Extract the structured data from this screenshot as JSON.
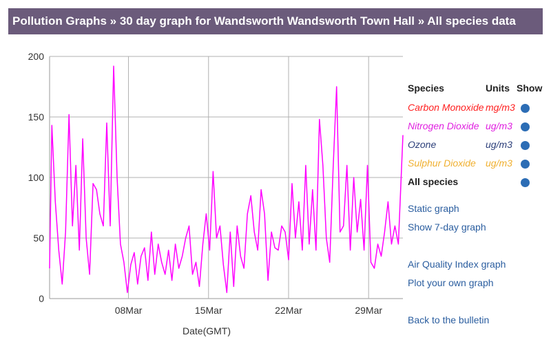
{
  "breadcrumb": "Pollution Graphs » 30 day graph for Wandsworth Wandsworth Town Hall » All species data",
  "species_table": {
    "header_species": "Species",
    "header_units": "Units",
    "header_show": "Show",
    "rows": [
      {
        "name": "Carbon Monoxide",
        "unit": "mg/m3",
        "color": "#ff2020"
      },
      {
        "name": "Nitrogen Dioxide",
        "unit": "ug/m3",
        "color": "#e020e0"
      },
      {
        "name": "Ozone",
        "unit": "ug/m3",
        "color": "#2c3f7a"
      },
      {
        "name": "Sulphur Dioxide",
        "unit": "ug/m3",
        "color": "#f0b030"
      }
    ],
    "all_label": "All species"
  },
  "links": {
    "static_graph": "Static graph",
    "seven_day": "Show 7-day graph",
    "aqi_graph": "Air Quality Index graph",
    "plot_own": "Plot your own graph",
    "back": "Back to the bulletin"
  },
  "chart_data": {
    "type": "line",
    "xlabel": "Date(GMT)",
    "ylabel": "",
    "ylim": [
      0,
      200
    ],
    "yticks": [
      0,
      50,
      100,
      150,
      200
    ],
    "xticks": [
      "08Mar",
      "15Mar",
      "22Mar",
      "29Mar"
    ],
    "xtick_positions": [
      7,
      14,
      21,
      28
    ],
    "xlim": [
      0.1,
      31.0
    ],
    "grid": true,
    "series": [
      {
        "color": "#ff00ff",
        "x": [
          0.1,
          0.3,
          0.6,
          0.9,
          1.2,
          1.5,
          1.8,
          2.1,
          2.4,
          2.7,
          3.0,
          3.3,
          3.6,
          3.9,
          4.2,
          4.5,
          4.8,
          5.1,
          5.4,
          5.7,
          6.0,
          6.3,
          6.6,
          6.9,
          7.2,
          7.5,
          7.8,
          8.1,
          8.4,
          8.7,
          9.0,
          9.3,
          9.6,
          9.9,
          10.2,
          10.5,
          10.8,
          11.1,
          11.4,
          11.7,
          12.0,
          12.3,
          12.6,
          12.9,
          13.2,
          13.5,
          13.8,
          14.1,
          14.4,
          14.7,
          15.0,
          15.3,
          15.6,
          15.9,
          16.2,
          16.5,
          16.8,
          17.1,
          17.4,
          17.7,
          18.0,
          18.3,
          18.6,
          18.9,
          19.2,
          19.5,
          19.8,
          20.1,
          20.4,
          20.7,
          21.0,
          21.3,
          21.6,
          21.9,
          22.2,
          22.5,
          22.8,
          23.1,
          23.4,
          23.7,
          24.0,
          24.3,
          24.6,
          24.9,
          25.2,
          25.5,
          25.8,
          26.1,
          26.4,
          26.7,
          27.0,
          27.3,
          27.6,
          27.9,
          28.2,
          28.5,
          28.8,
          29.1,
          29.4,
          29.7,
          30.0,
          30.3,
          30.6,
          31.0
        ],
        "values": [
          25,
          143,
          80,
          40,
          12,
          55,
          152,
          60,
          110,
          40,
          132,
          50,
          20,
          95,
          90,
          70,
          60,
          145,
          60,
          192,
          100,
          45,
          30,
          5,
          28,
          38,
          12,
          35,
          42,
          15,
          55,
          20,
          45,
          30,
          20,
          40,
          15,
          45,
          25,
          35,
          50,
          60,
          20,
          30,
          10,
          45,
          70,
          40,
          105,
          50,
          60,
          28,
          5,
          55,
          10,
          60,
          35,
          25,
          70,
          85,
          55,
          40,
          90,
          70,
          15,
          55,
          42,
          40,
          60,
          55,
          32,
          95,
          50,
          80,
          40,
          110,
          45,
          90,
          40,
          148,
          110,
          50,
          30,
          108,
          175,
          55,
          60,
          110,
          40,
          100,
          55,
          82,
          40,
          110,
          30,
          25,
          45,
          35,
          55,
          80,
          45,
          60,
          45,
          135
        ]
      }
    ]
  }
}
